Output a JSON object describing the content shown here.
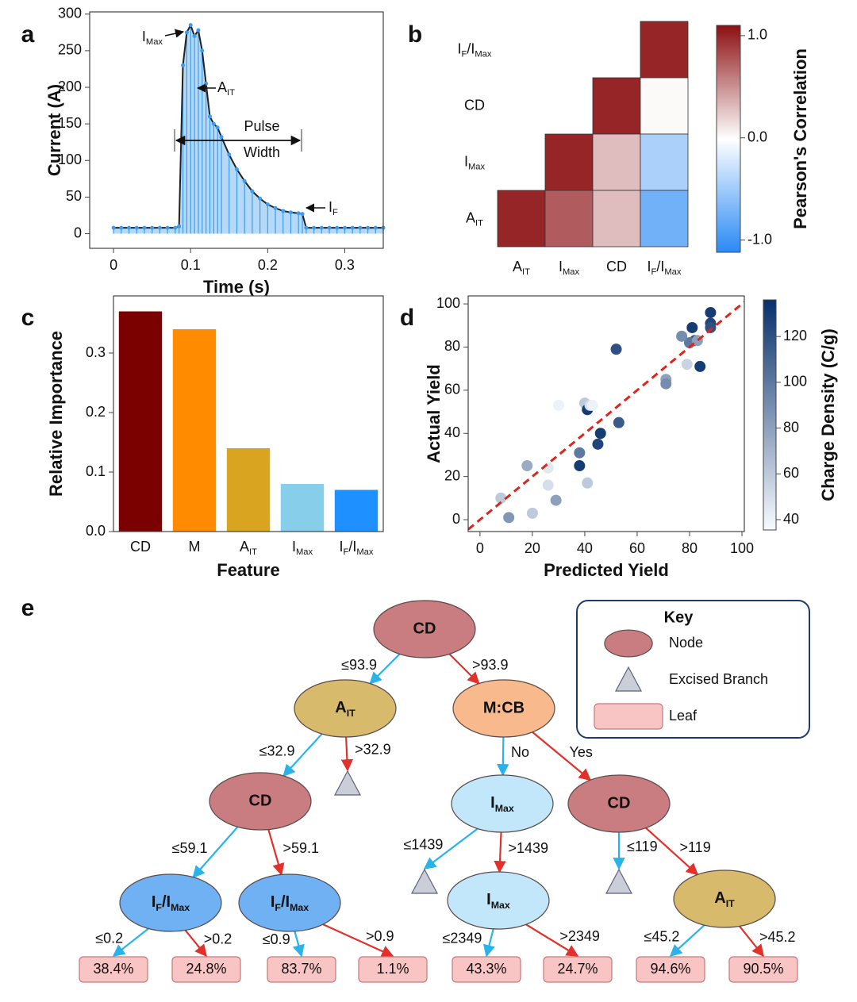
{
  "chart_data": [
    {
      "type": "line",
      "panel_label": "a",
      "x_label": "Time (s)",
      "y_label": "Current (A)",
      "x": [
        0,
        0.01,
        0.02,
        0.03,
        0.04,
        0.05,
        0.06,
        0.07,
        0.08,
        0.085,
        0.09,
        0.095,
        0.1,
        0.105,
        0.11,
        0.115,
        0.12,
        0.125,
        0.13,
        0.135,
        0.14,
        0.15,
        0.16,
        0.17,
        0.18,
        0.19,
        0.2,
        0.21,
        0.22,
        0.23,
        0.24,
        0.245,
        0.25,
        0.26,
        0.27,
        0.28,
        0.29,
        0.3,
        0.31,
        0.32,
        0.33,
        0.34,
        0.35
      ],
      "series": [
        {
          "values": [
            8,
            8,
            8,
            8,
            8,
            8,
            8,
            8,
            8,
            10,
            230,
            275,
            285,
            270,
            278,
            250,
            205,
            160,
            150,
            145,
            132,
            108,
            88,
            72,
            58,
            48,
            40,
            35,
            31,
            29,
            28,
            27,
            8,
            8,
            8,
            8,
            8,
            8,
            8,
            8,
            8,
            8,
            8
          ],
          "color": "#222222",
          "fill": "#b5d9f7",
          "marker_color": "#3b9cf0"
        }
      ],
      "xlim": [
        -0.031,
        0.35
      ],
      "xticks": [
        0,
        0.1,
        0.2,
        0.3
      ],
      "ylim": [
        -20,
        303
      ],
      "yticks": [
        0,
        50,
        100,
        150,
        200,
        250,
        300
      ],
      "annotations": [
        "I_Max",
        "A_IT",
        "Pulse",
        "Width",
        "I_F"
      ]
    },
    {
      "type": "heatmap",
      "panel_label": "b",
      "x_categories": [
        "A_IT",
        "I_Max",
        "CD",
        "I_F/I_Max"
      ],
      "y_categories": [
        "I_F/I_Max",
        "CD",
        "I_Max",
        "A_IT"
      ],
      "z": [
        [
          null,
          null,
          null,
          1.0
        ],
        [
          null,
          null,
          1.0,
          0.02
        ],
        [
          null,
          1.0,
          0.3,
          -0.45
        ],
        [
          1.0,
          0.75,
          0.3,
          -0.75
        ]
      ],
      "colorscale": [
        "#2a8af5",
        "#ffffff",
        "#8c0f12"
      ],
      "clim": [
        -1.12,
        1.1
      ],
      "cticks": [
        {
          "value": 1,
          "label": "1.0"
        },
        {
          "value": 0,
          "label": "0.0"
        },
        {
          "value": -1,
          "label": "-1.0"
        }
      ],
      "colorbar_label": "Pearson's Correlation"
    },
    {
      "type": "bar",
      "panel_label": "c",
      "x_label": "Feature",
      "y_label": "Relative Importance",
      "categories": [
        "CD",
        "M",
        "A_IT",
        "I_Max",
        "I_F/I_Max"
      ],
      "values": [
        0.37,
        0.34,
        0.14,
        0.08,
        0.07
      ],
      "colors": [
        "#7b0000",
        "#ff8c00",
        "#d9a520",
        "#87ceeb",
        "#1e90ff"
      ],
      "ylim": [
        0,
        0.396
      ],
      "yticks": [
        {
          "value": 0,
          "label": "0.0"
        },
        0.1,
        0.2,
        0.3
      ]
    },
    {
      "type": "scatter",
      "panel_label": "d",
      "x_label": "Predicted Yield",
      "y_label": "Actual Yield",
      "x": [
        88,
        88,
        88,
        81,
        82,
        80,
        83,
        77,
        79,
        84,
        71,
        71,
        52,
        40,
        41,
        42,
        43,
        30,
        53,
        46,
        45,
        38,
        38,
        41,
        26,
        26,
        18,
        29,
        8,
        11,
        20
      ],
      "y": [
        96,
        91,
        89,
        89,
        83,
        82,
        83,
        85,
        72,
        71,
        65,
        63,
        79,
        54,
        51,
        53,
        53,
        53,
        45,
        40,
        35,
        31,
        25,
        17,
        24,
        16,
        25,
        9,
        10,
        1,
        3
      ],
      "c": [
        130,
        125,
        120,
        130,
        120,
        100,
        80,
        90,
        55,
        130,
        80,
        90,
        120,
        60,
        130,
        50,
        40,
        40,
        115,
        130,
        125,
        100,
        130,
        60,
        45,
        50,
        75,
        80,
        60,
        85,
        60
      ],
      "colorscale": [
        "#f7fbff",
        "#08306b"
      ],
      "clim": [
        35.5,
        136
      ],
      "cticks": [
        40,
        60,
        80,
        100,
        120
      ],
      "colorbar_label": "Charge Density (C/g)",
      "xlim": [
        -4.5,
        100.9
      ],
      "xticks": [
        0,
        20,
        40,
        60,
        80,
        100
      ],
      "ylim": [
        -5.5,
        103.7
      ],
      "yticks": [
        0,
        20,
        40,
        60,
        80,
        100
      ],
      "reference_line": {
        "slope": 1,
        "intercept": 0,
        "color": "#e0241b"
      }
    }
  ],
  "tree": {
    "panel_label": "e",
    "nodes": [
      {
        "kind": "node",
        "label": "CD",
        "color": "#c97d80"
      },
      {
        "kind": "node",
        "label": "A_IT",
        "color": "#d8ba6c"
      },
      {
        "kind": "node",
        "label": "M:CB",
        "color": "#f8b98d"
      },
      {
        "kind": "excised",
        "color": "#c9ced8"
      },
      {
        "kind": "node",
        "label": "CD",
        "color": "#c97d80"
      },
      {
        "kind": "node",
        "label": "I_Max",
        "color": "#c2e7fa"
      },
      {
        "kind": "node",
        "label": "CD",
        "color": "#c97d80"
      },
      {
        "kind": "node",
        "label": "I_F/I_Max",
        "color": "#6fb1f2"
      },
      {
        "kind": "node",
        "label": "I_F/I_Max",
        "color": "#6fb1f2"
      },
      {
        "kind": "excised",
        "color": "#c9ced8"
      },
      {
        "kind": "node",
        "label": "I_Max",
        "color": "#c2e7fa"
      },
      {
        "kind": "excised",
        "color": "#c9ced8"
      },
      {
        "kind": "node",
        "label": "A_IT",
        "color": "#d8ba6c"
      },
      {
        "kind": "leaf",
        "label": "38.4%",
        "color": "#f8c4c4"
      },
      {
        "kind": "leaf",
        "label": "24.8%",
        "color": "#f8c4c4"
      },
      {
        "kind": "leaf",
        "label": "83.7%",
        "color": "#f8c4c4"
      },
      {
        "kind": "leaf",
        "label": "1.1%",
        "color": "#f8c4c4"
      },
      {
        "kind": "leaf",
        "label": "43.3%",
        "color": "#f8c4c4"
      },
      {
        "kind": "leaf",
        "label": "24.7%",
        "color": "#f8c4c4"
      },
      {
        "kind": "leaf",
        "label": "94.6%",
        "color": "#f8c4c4"
      },
      {
        "kind": "leaf",
        "label": "90.5%",
        "color": "#f8c4c4"
      }
    ],
    "edges": [
      {
        "from": 0,
        "to": 1,
        "label": "≤93.9",
        "color": "#29b3ea"
      },
      {
        "from": 0,
        "to": 2,
        "label": ">93.9",
        "color": "#e2312b"
      },
      {
        "from": 1,
        "to": 4,
        "label": "≤32.9",
        "color": "#29b3ea"
      },
      {
        "from": 1,
        "to": 3,
        "label": ">32.9",
        "color": "#e2312b"
      },
      {
        "from": 2,
        "to": 5,
        "label": "No",
        "color": "#29b3ea"
      },
      {
        "from": 2,
        "to": 6,
        "label": "Yes",
        "color": "#e2312b"
      },
      {
        "from": 4,
        "to": 7,
        "label": "≤59.1",
        "color": "#29b3ea"
      },
      {
        "from": 4,
        "to": 8,
        "label": ">59.1",
        "color": "#e2312b"
      },
      {
        "from": 5,
        "to": 9,
        "label": "≤1439",
        "color": "#29b3ea"
      },
      {
        "from": 5,
        "to": 10,
        "label": ">1439",
        "color": "#e2312b"
      },
      {
        "from": 6,
        "to": 11,
        "label": "≤119",
        "color": "#29b3ea"
      },
      {
        "from": 6,
        "to": 12,
        "label": ">119",
        "color": "#e2312b"
      },
      {
        "from": 7,
        "to": 13,
        "label": "≤0.2",
        "color": "#29b3ea"
      },
      {
        "from": 7,
        "to": 14,
        "label": ">0.2",
        "color": "#e2312b"
      },
      {
        "from": 8,
        "to": 15,
        "label": "≤0.9",
        "color": "#29b3ea"
      },
      {
        "from": 8,
        "to": 16,
        "label": ">0.9",
        "color": "#e2312b"
      },
      {
        "from": 10,
        "to": 17,
        "label": "≤2349",
        "color": "#29b3ea"
      },
      {
        "from": 10,
        "to": 18,
        "label": ">2349",
        "color": "#e2312b"
      },
      {
        "from": 12,
        "to": 19,
        "label": "≤45.2",
        "color": "#29b3ea"
      },
      {
        "from": 12,
        "to": 20,
        "label": ">45.2",
        "color": "#e2312b"
      }
    ],
    "key": {
      "title": "Key",
      "items": [
        {
          "kind": "node",
          "label": "Node",
          "color": "#c97d80"
        },
        {
          "kind": "excised",
          "label": "Excised Branch",
          "color": "#c9ced8"
        },
        {
          "kind": "leaf",
          "label": "Leaf",
          "color": "#f8c4c4"
        }
      ]
    }
  }
}
